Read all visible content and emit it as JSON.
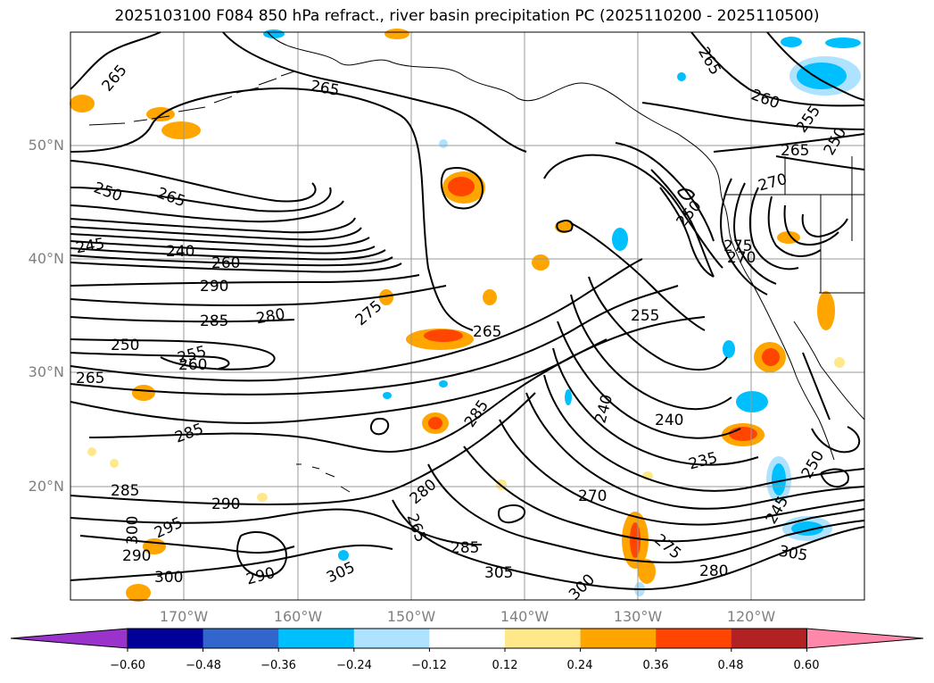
{
  "title": "2025103100 F084 850 hPa refract., river basin precipitation PC (2025110200 - 2025110500)",
  "map": {
    "lat_labels": [
      "50°N",
      "40°N",
      "30°N",
      "20°N"
    ],
    "lon_labels": [
      "170°W",
      "160°W",
      "150°W",
      "140°W",
      "130°W",
      "120°W"
    ],
    "contour_labels": [
      "265",
      "265",
      "265",
      "260",
      "255",
      "250",
      "265",
      "250",
      "265",
      "245",
      "240",
      "260",
      "290",
      "275",
      "280",
      "285",
      "265",
      "255",
      "250",
      "240",
      "275",
      "270",
      "270",
      "255",
      "260",
      "265",
      "250",
      "285",
      "285",
      "240",
      "235",
      "250",
      "285",
      "280",
      "270",
      "245",
      "300",
      "265",
      "285",
      "290",
      "295",
      "290",
      "300",
      "305",
      "305",
      "290",
      "280",
      "305",
      "300",
      "275"
    ]
  },
  "colorbar": {
    "ticks": [
      "−0.60",
      "−0.48",
      "−0.36",
      "−0.24",
      "−0.12",
      "0.12",
      "0.24",
      "0.36",
      "0.48",
      "0.60"
    ],
    "colors": {
      "under": "#9933cc",
      "bins": [
        "#000099",
        "#3366cc",
        "#00bfff",
        "#aee3ff",
        "#ffffff",
        "#ffe88a",
        "#ffa500",
        "#ff4500",
        "#b22222"
      ],
      "over": "#ff88aa"
    }
  }
}
